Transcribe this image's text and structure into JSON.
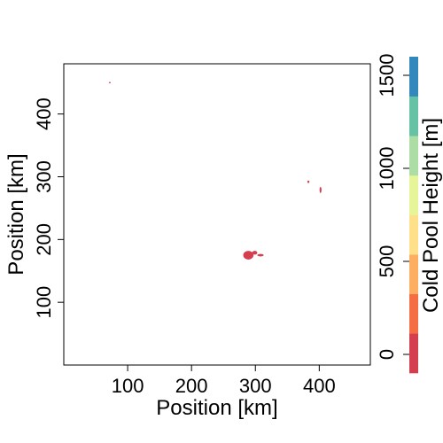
{
  "chart_data": {
    "type": "heatmap",
    "title": "",
    "xlabel": "Position [km]",
    "ylabel": "Position [km]",
    "xlim": [
      0,
      480
    ],
    "ylim": [
      0,
      480
    ],
    "x_ticks": [
      100,
      200,
      300,
      400
    ],
    "y_ticks": [
      100,
      200,
      300,
      400
    ],
    "grid": false,
    "blobs": [
      {
        "cx": 72,
        "cy": 450,
        "rx": 1.5,
        "ry": 1,
        "value": 50
      },
      {
        "cx": 289,
        "cy": 175,
        "rx": 8,
        "ry": 7,
        "value": 50
      },
      {
        "cx": 299,
        "cy": 179,
        "rx": 4,
        "ry": 3,
        "value": 50
      },
      {
        "cx": 308,
        "cy": 175,
        "rx": 5,
        "ry": 2,
        "value": 50
      },
      {
        "cx": 383,
        "cy": 292,
        "rx": 1.5,
        "ry": 2,
        "value": 50
      },
      {
        "cx": 402,
        "cy": 279,
        "rx": 1.5,
        "ry": 5,
        "value": 50
      }
    ],
    "colorbar": {
      "label": "Cold Pool Height [m]",
      "ticks": [
        0,
        500,
        1000,
        1500
      ],
      "range": [
        -100,
        1600
      ],
      "colors": [
        "#d53e4f",
        "#f46d43",
        "#fdae61",
        "#fee08b",
        "#e6f598",
        "#abdda4",
        "#66c2a5",
        "#3288bd"
      ]
    }
  }
}
